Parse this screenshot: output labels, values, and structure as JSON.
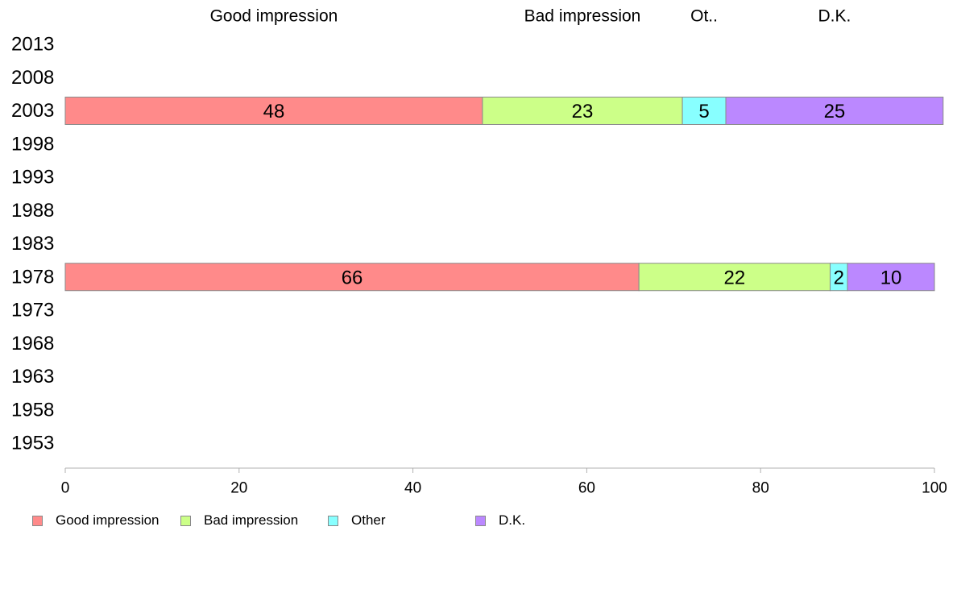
{
  "chart_data": {
    "type": "bar",
    "orientation": "horizontal",
    "stacked": true,
    "categories": [
      "2013",
      "2008",
      "2003",
      "1998",
      "1993",
      "1988",
      "1983",
      "1978",
      "1973",
      "1968",
      "1963",
      "1958",
      "1953"
    ],
    "series": [
      {
        "name": "Good impression",
        "color": "#ff8a8a",
        "values": [
          null,
          null,
          48,
          null,
          null,
          null,
          null,
          66,
          null,
          null,
          null,
          null,
          null
        ]
      },
      {
        "name": "Bad impression",
        "color": "#ccff88",
        "values": [
          null,
          null,
          23,
          null,
          null,
          null,
          null,
          22,
          null,
          null,
          null,
          null,
          null
        ]
      },
      {
        "name": "Other",
        "color": "#88ffff",
        "values": [
          null,
          null,
          5,
          null,
          null,
          null,
          null,
          2,
          null,
          null,
          null,
          null,
          null
        ]
      },
      {
        "name": "D.K.",
        "color": "#bb88ff",
        "values": [
          null,
          null,
          25,
          null,
          null,
          null,
          null,
          10,
          null,
          null,
          null,
          null,
          null
        ]
      }
    ],
    "column_headers": [
      "Good impression",
      "Bad impression",
      "Ot..",
      "D.K."
    ],
    "xlim": [
      0,
      100
    ],
    "x_ticks": [
      0,
      20,
      40,
      60,
      80,
      100
    ],
    "grid": false,
    "legend_position": "bottom-left"
  },
  "legend": {
    "items": [
      {
        "label": "Good impression",
        "color": "#ff8a8a"
      },
      {
        "label": "Bad impression",
        "color": "#ccff88"
      },
      {
        "label": "Other",
        "color": "#88ffff"
      },
      {
        "label": "D.K.",
        "color": "#bb88ff"
      }
    ]
  }
}
